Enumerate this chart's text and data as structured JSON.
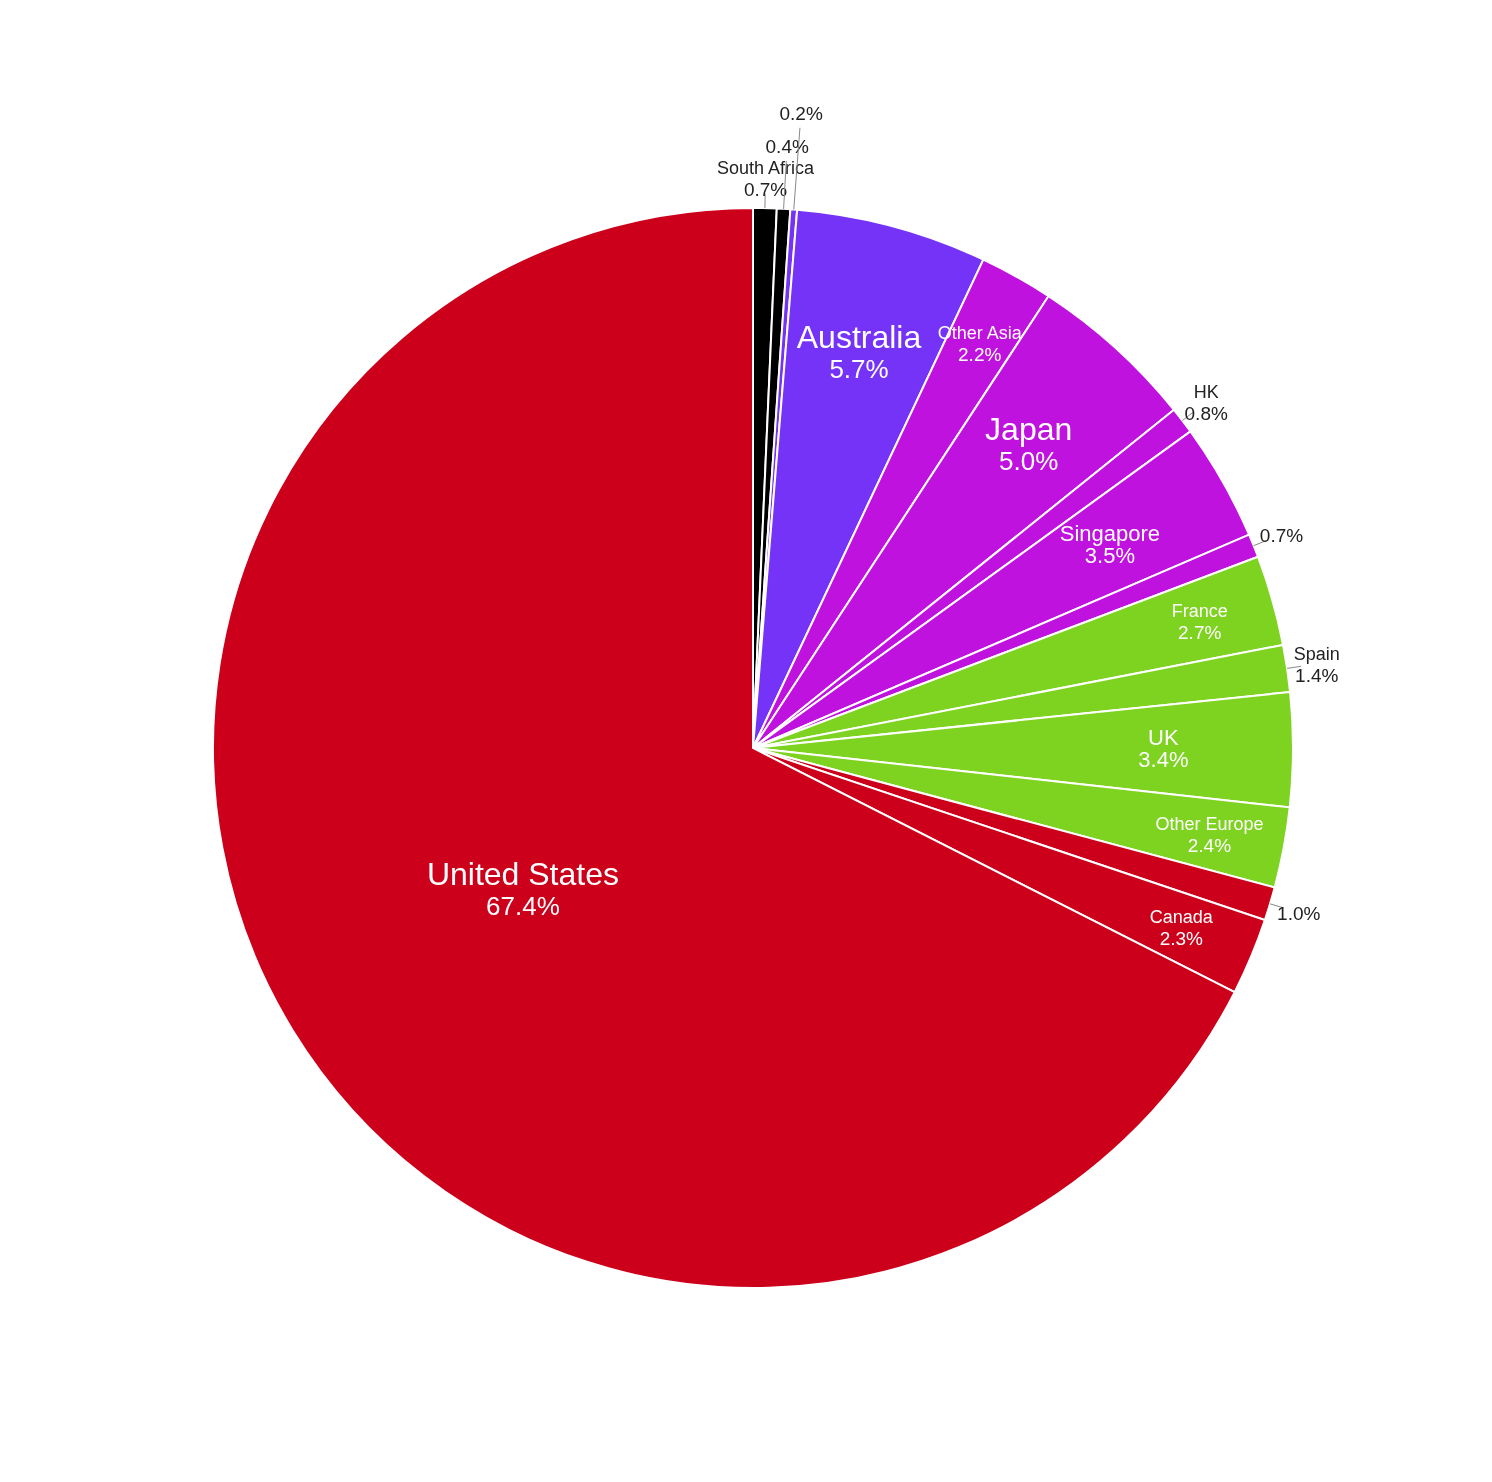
{
  "chart_data": {
    "type": "pie",
    "categories": [
      "South Africa",
      null,
      null,
      "Australia",
      "Other Asia",
      "Japan",
      "HK",
      "Singapore",
      null,
      "France",
      "Spain",
      "UK",
      "Other Europe",
      null,
      "Canada",
      "United States"
    ],
    "values": [
      0.7,
      0.4,
      0.2,
      5.7,
      2.2,
      5.0,
      0.8,
      3.5,
      0.7,
      2.7,
      1.4,
      3.4,
      2.4,
      1.0,
      2.3,
      67.4
    ],
    "value_labels": [
      "0.7%",
      "0.4%",
      "0.2%",
      "5.7%",
      "2.2%",
      "5.0%",
      "0.8%",
      "3.5%",
      "0.7%",
      "2.7%",
      "1.4%",
      "3.4%",
      "2.4%",
      "1.0%",
      "2.3%",
      "67.4%"
    ],
    "colors": [
      "#000000",
      "#000000",
      "#7433f7",
      "#7433f7",
      "#c012de",
      "#c012de",
      "#c012de",
      "#c012de",
      "#c012de",
      "#7ed321",
      "#7ed321",
      "#7ed321",
      "#7ed321",
      "#cc001b",
      "#cc001b",
      "#cc001b"
    ]
  }
}
